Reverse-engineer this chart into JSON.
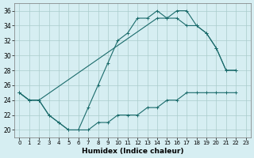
{
  "xlabel": "Humidex (Indice chaleur)",
  "bg_color": "#d6eef2",
  "grid_color": "#aacccc",
  "line_color": "#1a6b6b",
  "xlim": [
    -0.5,
    23.5
  ],
  "ylim": [
    19,
    37
  ],
  "xticks": [
    0,
    1,
    2,
    3,
    4,
    5,
    6,
    7,
    8,
    9,
    10,
    11,
    12,
    13,
    14,
    15,
    16,
    17,
    18,
    19,
    20,
    21,
    22,
    23
  ],
  "yticks": [
    20,
    22,
    24,
    26,
    28,
    30,
    32,
    34,
    36
  ],
  "line1_x": [
    0,
    1,
    2,
    3,
    4,
    5,
    6,
    7,
    8,
    9,
    10,
    11,
    12,
    13,
    14,
    15,
    16,
    17,
    18,
    19,
    20,
    21,
    22
  ],
  "line1_y": [
    25,
    24,
    24,
    22,
    21,
    20,
    20,
    23,
    26,
    29,
    32,
    33,
    35,
    35,
    36,
    35,
    35,
    34,
    34,
    33,
    31,
    28,
    28
  ],
  "line2_x": [
    0,
    1,
    2,
    14,
    15,
    16,
    17,
    18,
    19,
    20,
    21,
    22
  ],
  "line2_y": [
    25,
    24,
    24,
    35,
    35,
    36,
    36,
    34,
    33,
    31,
    28,
    28
  ],
  "line3_x": [
    0,
    1,
    2,
    3,
    4,
    5,
    6,
    7,
    8,
    9,
    10,
    11,
    12,
    13,
    14,
    15,
    16,
    17,
    18,
    19,
    20,
    21,
    22
  ],
  "line3_y": [
    25,
    24,
    24,
    22,
    21,
    20,
    20,
    20,
    21,
    21,
    22,
    22,
    22,
    23,
    23,
    24,
    24,
    25,
    25,
    25,
    25,
    25,
    25
  ]
}
